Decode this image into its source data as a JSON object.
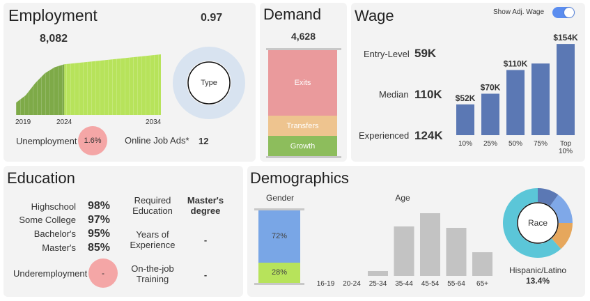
{
  "employment": {
    "title": "Employment",
    "value": "8,082",
    "ratio": "0.97",
    "years": [
      "2019",
      "2024",
      "2034"
    ],
    "type_label": "Type",
    "unemployment_label": "Unemployment",
    "unemployment_value": "1.6%",
    "online_ads_label": "Online Job Ads*",
    "online_ads_value": "12"
  },
  "demand": {
    "title": "Demand",
    "value": "4,628",
    "segments": [
      {
        "label": "Exits",
        "share": 0.62,
        "color": "#ea9a9c"
      },
      {
        "label": "Transfers",
        "share": 0.19,
        "color": "#eec48f"
      },
      {
        "label": "Growth",
        "share": 0.19,
        "color": "#8dbd5c"
      }
    ]
  },
  "wage": {
    "title": "Wage",
    "toggle_label": "Show Adj. Wage",
    "rows": [
      {
        "label": "Entry-Level",
        "value": "59K"
      },
      {
        "label": "Median",
        "value": "110K"
      },
      {
        "label": "Experienced",
        "value": "124K"
      }
    ],
    "bar_color": "#5b78b4"
  },
  "education": {
    "title": "Education",
    "levels": [
      {
        "label": "Highschool",
        "value": "98%"
      },
      {
        "label": "Some College",
        "value": "97%"
      },
      {
        "label": "Bachelor's",
        "value": "95%"
      },
      {
        "label": "Master's",
        "value": "85%"
      }
    ],
    "underemployment_label": "Underemployment",
    "underemployment_value": "-",
    "required_label_1": "Required",
    "required_label_2": "Education",
    "required_value_1": "Master's",
    "required_value_2": "degree",
    "experience_label_1": "Years of",
    "experience_label_2": "Experience",
    "experience_value": "-",
    "training_label_1": "On-the-job",
    "training_label_2": "Training",
    "training_value": "-"
  },
  "demographics": {
    "title": "Demographics",
    "gender_title": "Gender",
    "gender": [
      {
        "label": "72%",
        "share": 0.72,
        "color": "#79a6e6"
      },
      {
        "label": "28%",
        "share": 0.28,
        "color": "#b7e35b"
      }
    ],
    "age_title": "Age",
    "race_label": "Race",
    "race_caption": "Hispanic/Latino",
    "race_value": "13.4%"
  },
  "chart_data": [
    {
      "type": "area",
      "title": "Employment",
      "x": [
        2019,
        2020,
        2021,
        2022,
        2023,
        2024,
        2034
      ],
      "values": [
        7100,
        7250,
        7500,
        7700,
        7820,
        7880,
        8082
      ],
      "segments": [
        "historical 2019-2024",
        "projected 2024-2034"
      ],
      "colors": [
        "#7eaa48",
        "#b7e35b"
      ]
    },
    {
      "type": "bar",
      "title": "Wage",
      "categories": [
        "10%",
        "25%",
        "50%",
        "75%",
        "Top 10%"
      ],
      "values": [
        52,
        70,
        110,
        121,
        154
      ],
      "labels": [
        "$52K",
        "$70K",
        "$110K",
        "",
        "$154K"
      ],
      "ylim": [
        0,
        160
      ]
    },
    {
      "type": "bar",
      "title": "Age",
      "categories": [
        "16-19",
        "20-24",
        "25-34",
        "35-44",
        "45-54",
        "55-64",
        "65+"
      ],
      "values": [
        0,
        0,
        7,
        71,
        90,
        69,
        34
      ],
      "ylim": [
        0,
        100
      ],
      "color": "#c3c3c3"
    },
    {
      "type": "pie",
      "title": "Race",
      "slices": [
        {
          "value": 10,
          "color": "#5b78b4"
        },
        {
          "value": 15,
          "color": "#7fa8e8"
        },
        {
          "value": 13.4,
          "color": "#e6a75c"
        },
        {
          "value": 61.6,
          "color": "#5bc6d8"
        }
      ]
    }
  ]
}
